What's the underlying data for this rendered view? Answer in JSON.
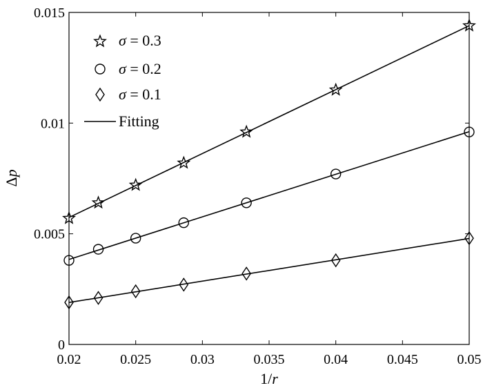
{
  "chart_data": {
    "type": "line",
    "xlabel": "1/r",
    "xlabel_prefix": "1/",
    "xlabel_var": "r",
    "ylabel": "Δp",
    "ylabel_prefix": "Δ",
    "ylabel_var": "p",
    "xlim": [
      0.02,
      0.05
    ],
    "ylim": [
      0,
      0.015
    ],
    "xticks": [
      0.02,
      0.025,
      0.03,
      0.035,
      0.04,
      0.045,
      0.05
    ],
    "xtick_labels": [
      "0.02",
      "0.025",
      "0.03",
      "0.035",
      "0.04",
      "0.045",
      "0.05"
    ],
    "yticks": [
      0,
      0.005,
      0.01,
      0.015
    ],
    "ytick_labels": [
      "0",
      "0.005",
      "0.01",
      "0.015"
    ],
    "grid": false,
    "legend_position": "top-left",
    "x": [
      0.02,
      0.0222,
      0.025,
      0.0286,
      0.0333,
      0.04,
      0.05
    ],
    "series": [
      {
        "name": "σ = 0.3",
        "name_symbol": "σ",
        "name_rest": " = 0.3",
        "marker": "star",
        "values": [
          0.0057,
          0.0064,
          0.0072,
          0.0082,
          0.0096,
          0.0115,
          0.0144
        ]
      },
      {
        "name": "σ = 0.2",
        "name_symbol": "σ",
        "name_rest": " = 0.2",
        "marker": "circle",
        "values": [
          0.0038,
          0.0043,
          0.0048,
          0.0055,
          0.0064,
          0.0077,
          0.0096
        ]
      },
      {
        "name": "σ = 0.1",
        "name_symbol": "σ",
        "name_rest": " = 0.1",
        "marker": "diamond",
        "values": [
          0.0019,
          0.0021,
          0.0024,
          0.0027,
          0.0032,
          0.0038,
          0.0048
        ]
      }
    ],
    "fit_legend_label": "Fitting",
    "line_color": "#000000"
  }
}
